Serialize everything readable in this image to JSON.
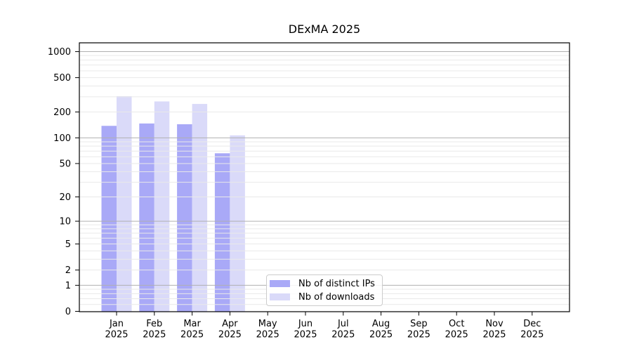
{
  "figure": {
    "background": "#ffffff"
  },
  "chart_data": {
    "type": "bar",
    "title": "DExMA 2025",
    "categories": [
      "Jan 2025",
      "Feb 2025",
      "Mar 2025",
      "Apr 2025",
      "May 2025",
      "Jun 2025",
      "Jul 2025",
      "Aug 2025",
      "Sep 2025",
      "Oct 2025",
      "Nov 2025",
      "Dec 2025"
    ],
    "series": [
      {
        "name": "Nb of distinct IPs",
        "color": "#a9a9f7",
        "values": [
          138,
          147,
          144,
          66,
          0,
          0,
          0,
          0,
          0,
          0,
          0,
          0
        ]
      },
      {
        "name": "Nb of downloads",
        "color": "#dadaf9",
        "values": [
          305,
          265,
          248,
          107,
          0,
          0,
          0,
          0,
          0,
          0,
          0,
          0
        ]
      }
    ],
    "xlabel": "",
    "ylabel": "",
    "y_scale": "log1p",
    "y_ticks": [
      0,
      1,
      2,
      5,
      10,
      20,
      50,
      100,
      200,
      500,
      1000
    ],
    "ylim": [
      0,
      1260
    ],
    "grid": "both",
    "legend_position": "lower-center-inside"
  },
  "axes": {
    "spine_color": "#000000",
    "tick_color": "#000000",
    "label_color": "#000000",
    "grid_major_color": "#b0b0b0",
    "grid_minor_color": "#e9e9e9"
  }
}
